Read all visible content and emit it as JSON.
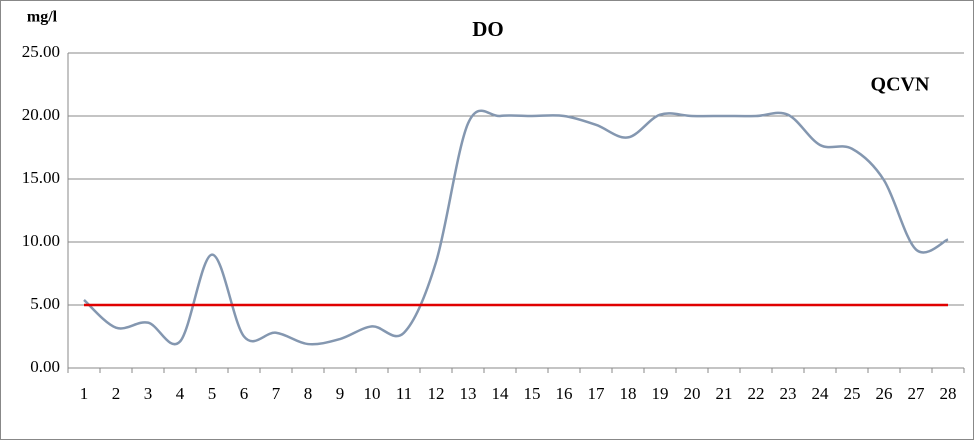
{
  "chart_data": {
    "type": "line",
    "title": "DO",
    "y_label": "mg/l",
    "categories": [
      "1",
      "2",
      "3",
      "4",
      "5",
      "6",
      "7",
      "8",
      "9",
      "10",
      "11",
      "12",
      "13",
      "14",
      "15",
      "16",
      "17",
      "18",
      "19",
      "20",
      "21",
      "22",
      "23",
      "24",
      "25",
      "26",
      "27",
      "28"
    ],
    "series": [
      {
        "name": "DO",
        "color": "#8497b0",
        "values": [
          5.4,
          3.2,
          3.6,
          2.1,
          9.0,
          2.5,
          2.8,
          1.9,
          2.3,
          3.3,
          2.8,
          8.4,
          19.4,
          20.0,
          20.0,
          20.0,
          19.3,
          18.3,
          20.1,
          20.0,
          20.0,
          20.0,
          20.1,
          17.7,
          17.4,
          14.9,
          9.4,
          10.2
        ]
      },
      {
        "name": "QCVN",
        "color": "#e00000",
        "values": [
          5,
          5,
          5,
          5,
          5,
          5,
          5,
          5,
          5,
          5,
          5,
          5,
          5,
          5,
          5,
          5,
          5,
          5,
          5,
          5,
          5,
          5,
          5,
          5,
          5,
          5,
          5,
          5
        ]
      }
    ],
    "ylim": [
      0,
      25
    ],
    "yticks": [
      {
        "value": 0,
        "label": "0.00"
      },
      {
        "value": 5,
        "label": "5.00"
      },
      {
        "value": 10,
        "label": "10.00"
      },
      {
        "value": 15,
        "label": "15.00"
      },
      {
        "value": 20,
        "label": "20.00"
      },
      {
        "value": 25,
        "label": "25.00"
      }
    ],
    "grid": true,
    "smooth": true
  }
}
